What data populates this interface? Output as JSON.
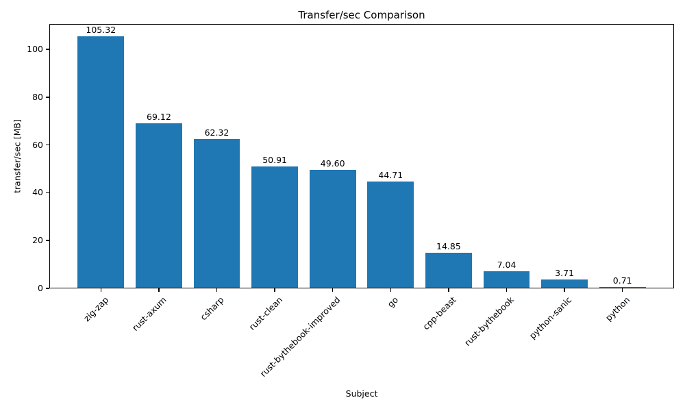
{
  "chart_data": {
    "type": "bar",
    "title": "Transfer/sec Comparison",
    "xlabel": "Subject",
    "ylabel": "transfer/sec [MB]",
    "categories": [
      "zig-zap",
      "rust-axum",
      "csharp",
      "rust-clean",
      "rust-bythebook-improved",
      "go",
      "cpp-beast",
      "rust-bythebook",
      "python-sanic",
      "python"
    ],
    "values": [
      105.32,
      69.12,
      62.32,
      50.91,
      49.6,
      44.71,
      14.85,
      7.04,
      3.71,
      0.71
    ],
    "value_labels": [
      "105.32",
      "69.12",
      "62.32",
      "50.91",
      "49.60",
      "44.71",
      "14.85",
      "7.04",
      "3.71",
      "0.71"
    ],
    "yticks": [
      "0",
      "20",
      "40",
      "60",
      "80",
      "100"
    ],
    "ytick_values": [
      0,
      20,
      40,
      60,
      80,
      100
    ],
    "ylim": [
      0,
      110.59
    ],
    "bar_color": "#1f77b4",
    "axis_color": "#000000",
    "grid": "off",
    "legend": "none",
    "bar_width_fraction": 0.8,
    "x_margin_units": 0.89
  }
}
